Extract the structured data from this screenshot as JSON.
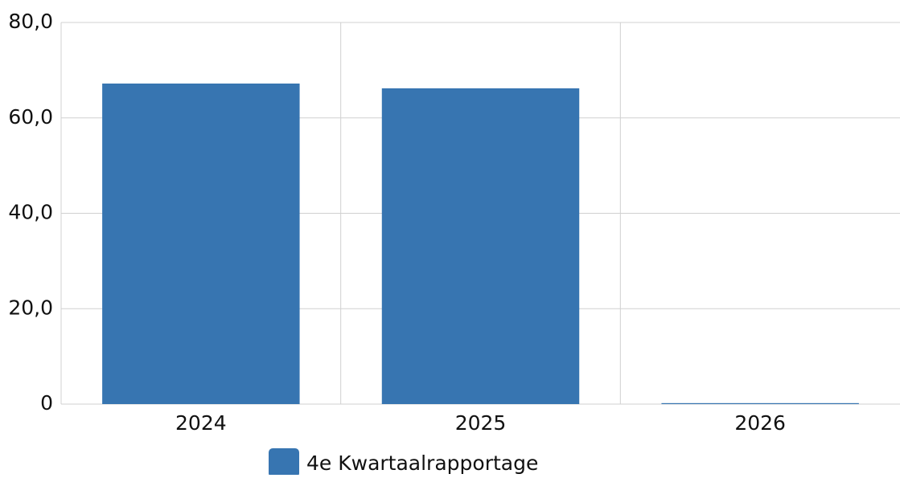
{
  "chart_data": {
    "type": "bar",
    "categories": [
      "2024",
      "2025",
      "2026"
    ],
    "series": [
      {
        "name": "4e Kwartaalrapportage",
        "color": "#3775b1",
        "values": [
          67.2,
          66.2,
          0.2
        ]
      }
    ],
    "ylim": [
      0,
      80
    ],
    "yticks": [
      0,
      {
        "value": 20,
        "label": "20,0"
      },
      {
        "value": 40,
        "label": "40,0"
      },
      {
        "value": 60,
        "label": "60,0"
      },
      {
        "value": 80,
        "label": "80,0"
      }
    ],
    "grid": true,
    "legend": "bottom"
  }
}
